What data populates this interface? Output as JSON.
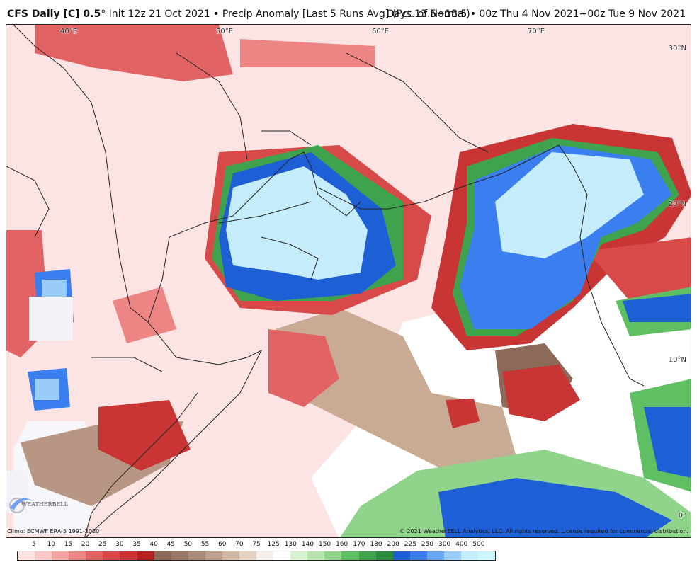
{
  "header": {
    "title_bold": "CFS Daily [C] 0.5",
    "title_degree": "°",
    "title_rest": " Init 12z 21 Oct 2021 • Precip Anomaly [Last 5 Runs Avg] (Pct. of Normal)",
    "valid": "Days 13.5−18.5 • 00z Thu 4 Nov 2021−00z Tue 9 Nov 2021"
  },
  "map": {
    "lon_labels": [
      "40°E",
      "50°E",
      "60°E",
      "70°E"
    ],
    "lat_labels": [
      "30°N",
      "20°N",
      "10°N",
      "0°"
    ],
    "logo_text": "WEATHERBELL"
  },
  "footer": {
    "climo": "Climo: ECMWF ERA-5 1991-2020",
    "copyright": "© 2021 WeatherBELL Analytics, LLC. All rights reserved. License required for commercial distribution."
  },
  "colorbar": {
    "labels": [
      "5",
      "10",
      "15",
      "20",
      "25",
      "30",
      "35",
      "40",
      "45",
      "50",
      "55",
      "60",
      "70",
      "75",
      "125",
      "130",
      "140",
      "150",
      "160",
      "170",
      "180",
      "200",
      "225",
      "250",
      "300",
      "400",
      "500"
    ],
    "colors": [
      "#fde2e2",
      "#fbc8c8",
      "#f5a3a3",
      "#ee8585",
      "#e26363",
      "#d84a4a",
      "#c93434",
      "#b52222",
      "#8c6a5a",
      "#9a7868",
      "#a98b7a",
      "#bca08c",
      "#cfb7a4",
      "#e3d2c4",
      "#f6efe9",
      "#ffffff",
      "#d6efd0",
      "#b7e3ae",
      "#8fd48a",
      "#5fbf63",
      "#3fa34d",
      "#2e8a3f",
      "#1f5fd6",
      "#3a7ef0",
      "#66a6f3",
      "#98ccf6",
      "#c4ecfa",
      "#ccf5fb"
    ]
  }
}
